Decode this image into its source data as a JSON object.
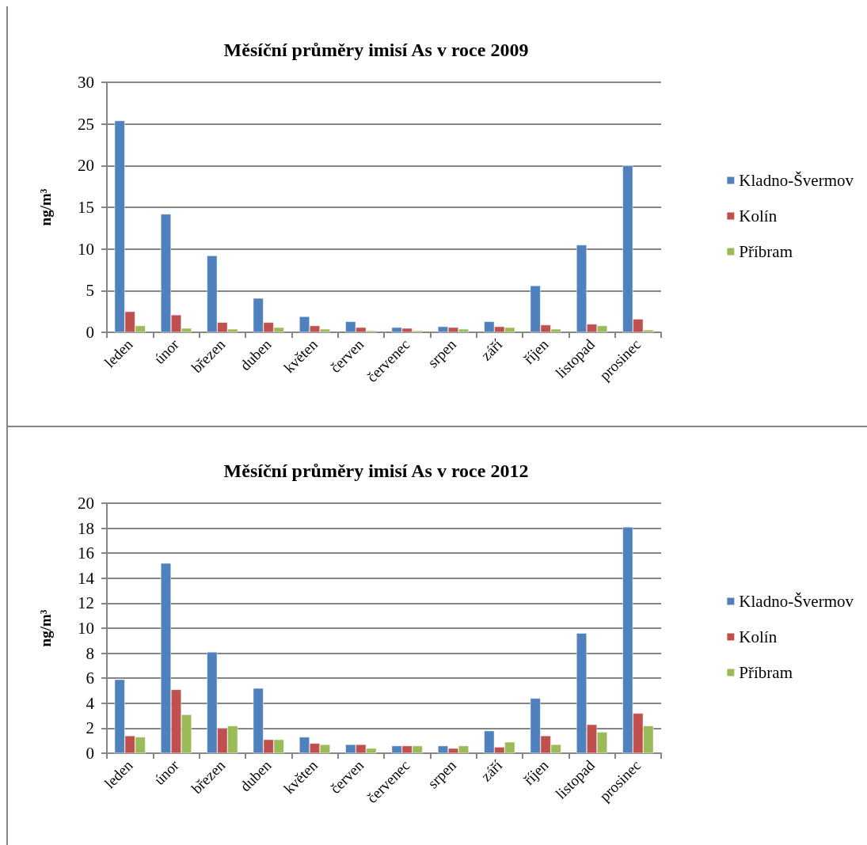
{
  "chart_data": [
    {
      "type": "bar",
      "title": "Měsíční průměry imisí As v roce 2009",
      "ylabel": "ng/m³",
      "categories": [
        "leden",
        "únor",
        "březen",
        "duben",
        "květen",
        "červen",
        "červenec",
        "srpen",
        "září",
        "říjen",
        "listopad",
        "prosinec"
      ],
      "series": [
        {
          "name": "Kladno-Švermov",
          "color": "#4f81bd",
          "values": [
            25.4,
            14.2,
            9.2,
            4.1,
            1.9,
            1.3,
            0.6,
            0.7,
            1.3,
            5.6,
            10.5,
            20.0
          ]
        },
        {
          "name": "Kolín",
          "color": "#c0504d",
          "values": [
            2.5,
            2.1,
            1.2,
            1.2,
            0.8,
            0.6,
            0.5,
            0.6,
            0.7,
            0.9,
            1.0,
            1.6
          ]
        },
        {
          "name": "Příbram",
          "color": "#9bbb59",
          "values": [
            0.8,
            0.5,
            0.4,
            0.6,
            0.4,
            0.2,
            0.2,
            0.4,
            0.6,
            0.4,
            0.8,
            0.3
          ]
        }
      ],
      "ylim": [
        0,
        30
      ],
      "yticks": [
        0,
        5,
        10,
        15,
        20,
        25,
        30
      ],
      "grid": "y",
      "legend": "right"
    },
    {
      "type": "bar",
      "title": "Měsíční průměry imisí As v roce 2012",
      "ylabel": "ng/m³",
      "categories": [
        "leden",
        "únor",
        "březen",
        "duben",
        "květen",
        "červen",
        "červenec",
        "srpen",
        "září",
        "říjen",
        "listopad",
        "prosinec"
      ],
      "series": [
        {
          "name": "Kladno-Švermov",
          "color": "#4f81bd",
          "values": [
            5.9,
            15.2,
            8.1,
            5.2,
            1.3,
            0.7,
            0.6,
            0.6,
            1.8,
            4.4,
            9.6,
            18.1
          ]
        },
        {
          "name": "Kolín",
          "color": "#c0504d",
          "values": [
            1.4,
            5.1,
            2.0,
            1.1,
            0.8,
            0.7,
            0.6,
            0.4,
            0.5,
            1.4,
            2.3,
            3.2
          ]
        },
        {
          "name": "Příbram",
          "color": "#9bbb59",
          "values": [
            1.3,
            3.1,
            2.2,
            1.1,
            0.7,
            0.4,
            0.6,
            0.6,
            0.9,
            0.7,
            1.7,
            2.2
          ]
        }
      ],
      "ylim": [
        0,
        20
      ],
      "yticks": [
        0,
        2,
        4,
        6,
        8,
        10,
        12,
        14,
        16,
        18,
        20
      ],
      "grid": "y",
      "legend": "right"
    }
  ]
}
